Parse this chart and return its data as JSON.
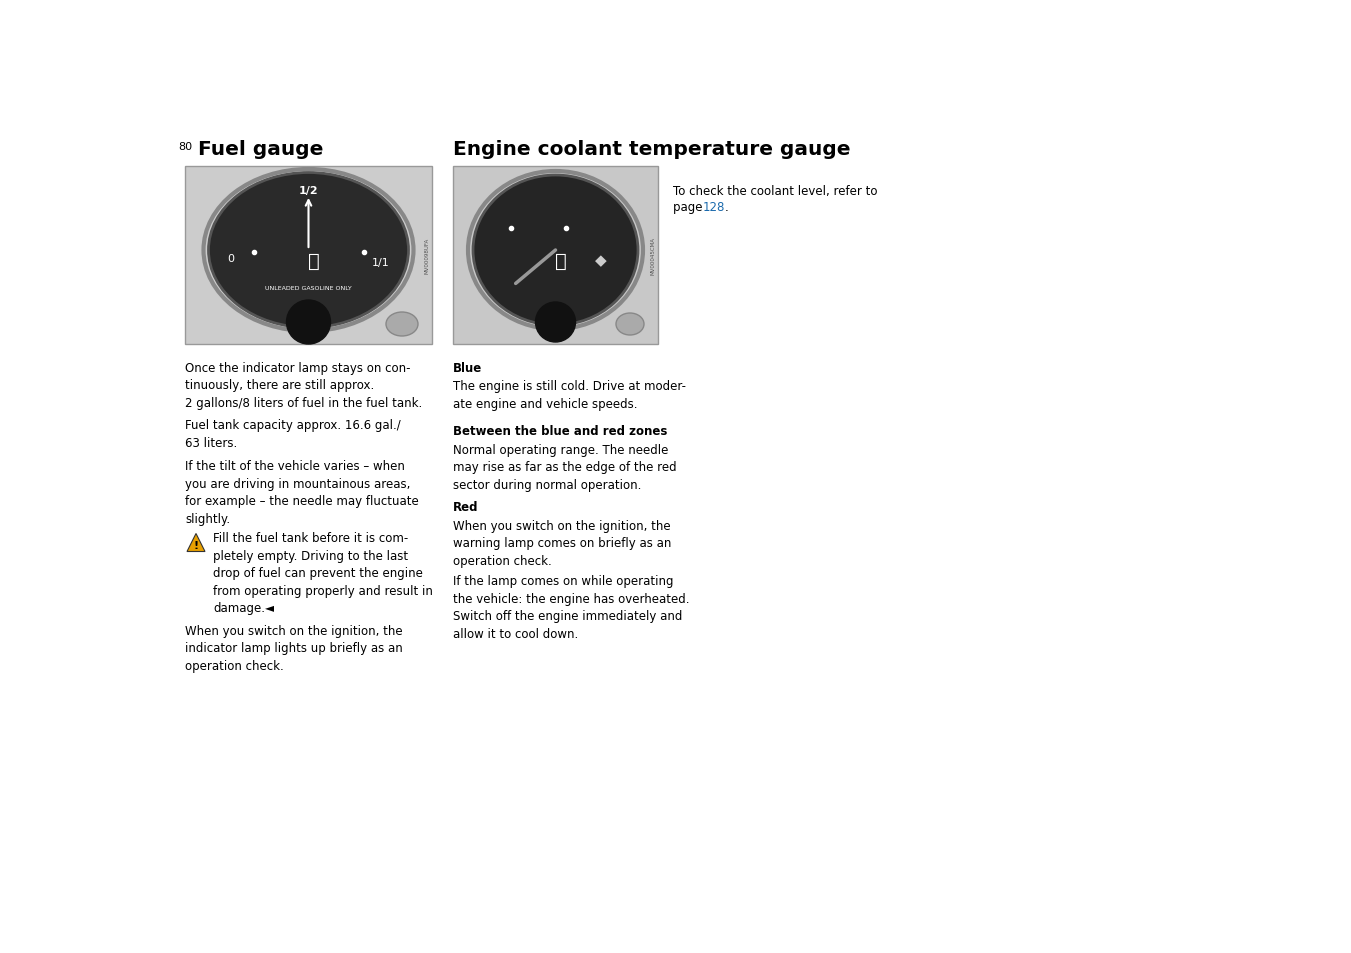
{
  "page_number": "80",
  "left_title": "Fuel gauge",
  "right_title": "Engine coolant temperature gauge",
  "fuel_image_label": "MV00098UFA",
  "coolant_image_label": "MV00045CMA",
  "coolant_note_line1": "To check the coolant level, refer to",
  "coolant_note_line2_pre": "page ",
  "coolant_note_link": "128",
  "coolant_note_line2_post": ".",
  "left_paragraphs": [
    "Once the indicator lamp stays on con-\ntinuously, there are still approx.\n2 gallons/8 liters of fuel in the fuel tank.",
    "Fuel tank capacity approx. 16.6 gal./\n63 liters.",
    "If the tilt of the vehicle varies – when\nyou are driving in mountainous areas,\nfor example – the needle may fluctuate\nslightly.",
    "When you switch on the ignition, the\nindicator lamp lights up briefly as an\noperation check."
  ],
  "warning_text": "Fill the fuel tank before it is com-\npletely empty. Driving to the last\ndrop of fuel can prevent the engine\nfrom operating properly and result in\ndamage.◄",
  "right_headings": [
    "Blue",
    "Between the blue and red zones",
    "Red"
  ],
  "right_texts": [
    "The engine is still cold. Drive at moder-\nate engine and vehicle speeds.",
    "Normal operating range. The needle\nmay rise as far as the edge of the red\nsector during normal operation.",
    "When you switch on the ignition, the\nwarning lamp comes on briefly as an\noperation check.",
    "If the lamp comes on while operating\nthe vehicle: the engine has overheated.\nSwitch off the engine immediately and\nallow it to cool down."
  ],
  "bg_color": "#ffffff",
  "text_color": "#000000",
  "link_color": "#1a6aad",
  "font_size_title": 14.5,
  "font_size_body": 8.5,
  "font_size_pagenum": 8.0
}
